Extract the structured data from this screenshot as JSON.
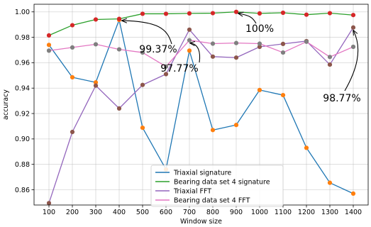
{
  "chart_data": {
    "type": "line",
    "xlabel": "Window size",
    "ylabel": "accuracy",
    "x": [
      100,
      200,
      300,
      400,
      500,
      600,
      700,
      800,
      900,
      1000,
      1100,
      1200,
      1300,
      1400
    ],
    "ylim": [
      0.848,
      1.006
    ],
    "yticks": [
      0.86,
      0.88,
      0.9,
      0.92,
      0.94,
      0.96,
      0.98,
      1.0
    ],
    "ytick_labels": [
      "0.86",
      "0.88",
      "0.90",
      "0.92",
      "0.94",
      "0.96",
      "0.98",
      "1.00"
    ],
    "xtick_labels": [
      "100",
      "200",
      "300",
      "400",
      "500",
      "600",
      "700",
      "800",
      "900",
      "1000",
      "1100",
      "1200",
      "1300",
      "1400"
    ],
    "grid": true,
    "legend_position": "bottom-center",
    "series": [
      {
        "name": "Triaxial signature",
        "color": "#1f77b4",
        "marker_color": "#ff7f0e",
        "values": [
          0.974,
          0.9485,
          0.9445,
          0.9937,
          0.9088,
          0.876,
          0.9695,
          0.907,
          0.911,
          0.9385,
          0.9345,
          0.893,
          0.8655,
          0.857
        ]
      },
      {
        "name": "Bearing data set 4 signature",
        "color": "#2ca02c",
        "marker_color": "#d62728",
        "values": [
          0.9815,
          0.9895,
          0.994,
          0.9945,
          0.9985,
          0.9985,
          0.9988,
          0.999,
          1.0,
          0.9988,
          0.9993,
          0.9978,
          0.999,
          0.9975
        ]
      },
      {
        "name": "Triaxial FFT",
        "color": "#9467bd",
        "marker_color": "#8c564b",
        "values": [
          0.8495,
          0.9055,
          0.942,
          0.924,
          0.9425,
          0.951,
          0.986,
          0.9648,
          0.964,
          0.9725,
          0.9748,
          0.977,
          0.9585,
          0.9877
        ]
      },
      {
        "name": "Bearing data set 4 FFT",
        "color": "#e377c2",
        "marker_color": "#7f7f7f",
        "values": [
          0.9695,
          0.972,
          0.9745,
          0.9705,
          0.968,
          0.957,
          0.9777,
          0.975,
          0.9755,
          0.975,
          0.968,
          0.9765,
          0.9645,
          0.9725
        ]
      }
    ],
    "annotations": [
      {
        "text": "99.37%",
        "x": 400,
        "y": 0.9937
      },
      {
        "text": "97.77%",
        "x": 700,
        "y": 0.9777
      },
      {
        "text": "100%",
        "x": 900,
        "y": 1.0
      },
      {
        "text": "98.77%",
        "x": 1400,
        "y": 0.9877
      }
    ]
  }
}
